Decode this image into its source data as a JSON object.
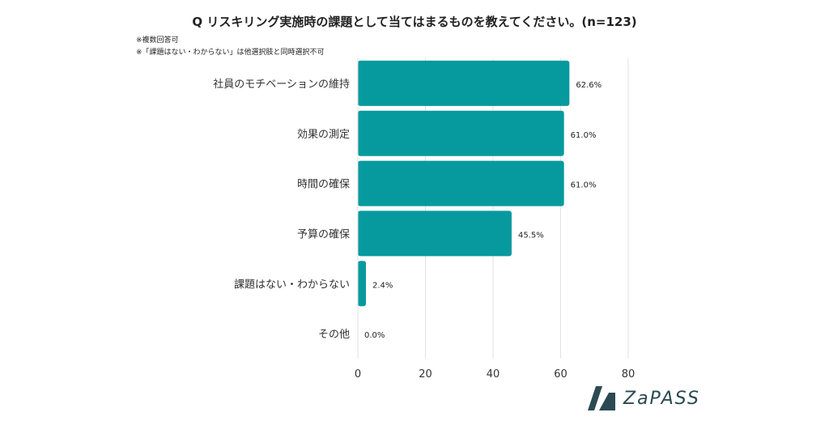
{
  "header": {
    "title": "Q リスキリング実施時の課題として当てはまるものを教えてください。(n=123)",
    "note1": "※複数回答可",
    "note2": "※「課題はない・わからない」は他選択肢と同時選択不可"
  },
  "brand": {
    "name": "ZaPASS",
    "color": "#2c4a52"
  },
  "chart_data": {
    "type": "bar",
    "orientation": "horizontal",
    "categories": [
      "社員のモチベーションの維持",
      "効果の測定",
      "時間の確保",
      "予算の確保",
      "課題はない・わからない",
      "その他"
    ],
    "values": [
      62.6,
      61.0,
      61.0,
      45.5,
      2.4,
      0.0
    ],
    "value_labels": [
      "62.6%",
      "61.0%",
      "61.0%",
      "45.5%",
      "2.4%",
      "0.0%"
    ],
    "xlim": [
      0,
      80
    ],
    "xticks": [
      "0",
      "20",
      "40",
      "60",
      "80"
    ],
    "bar_color": "#069a9e",
    "grid": true
  }
}
